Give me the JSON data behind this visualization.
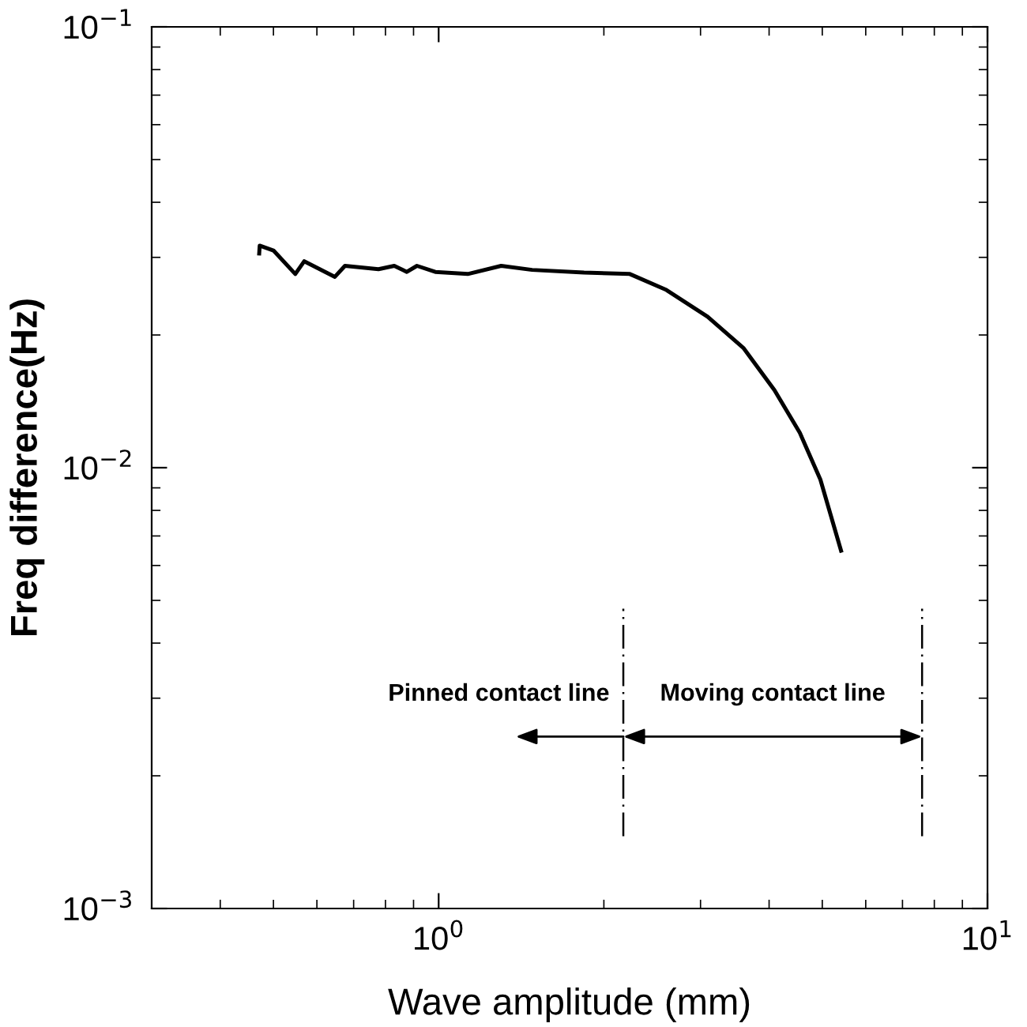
{
  "chart_data": {
    "type": "line",
    "xlabel": "Wave amplitude (mm)",
    "ylabel": "Freq difference(Hz)",
    "log": "xy",
    "x": [
      0.471,
      0.472,
      0.5,
      0.548,
      0.569,
      0.647,
      0.675,
      0.777,
      0.83,
      0.875,
      0.913,
      0.986,
      1.13,
      1.3,
      1.48,
      1.84,
      2.23,
      2.6,
      3.09,
      3.59,
      4.09,
      4.55,
      4.96,
      5.41
    ],
    "series": [
      {
        "color": "#000000",
        "values": [
          0.0306,
          0.0319,
          0.0311,
          0.0275,
          0.0294,
          0.0271,
          0.0287,
          0.0282,
          0.0287,
          0.0278,
          0.0287,
          0.0278,
          0.0275,
          0.0287,
          0.0281,
          0.0277,
          0.0275,
          0.0253,
          0.022,
          0.0187,
          0.015,
          0.012,
          0.0094,
          0.00648
        ]
      }
    ],
    "xlim": [
      0.3,
      10
    ],
    "ylim": [
      0.001,
      0.1
    ],
    "xticks": [
      {
        "value": 1,
        "label": "10$^{0}$"
      },
      {
        "value": 10,
        "label": "10$^{1}$"
      }
    ],
    "yticks": [
      {
        "value": 0.001,
        "label": "10$^{−3}$"
      },
      {
        "value": 0.01,
        "label": "10$^{−2}$"
      },
      {
        "value": 0.1,
        "label": "10$^{−1}$"
      }
    ],
    "ref_lines": [
      {
        "axis": "x",
        "value": 2.17,
        "color": "#000000",
        "line_style": "dashed"
      },
      {
        "axis": "x",
        "value": 7.6,
        "color": "#000000",
        "line_style": "dashed"
      }
    ],
    "annotations": [
      "Pinned contact line",
      "Moving contact line"
    ],
    "grid": false,
    "marker": "none",
    "line_style": "solid"
  }
}
